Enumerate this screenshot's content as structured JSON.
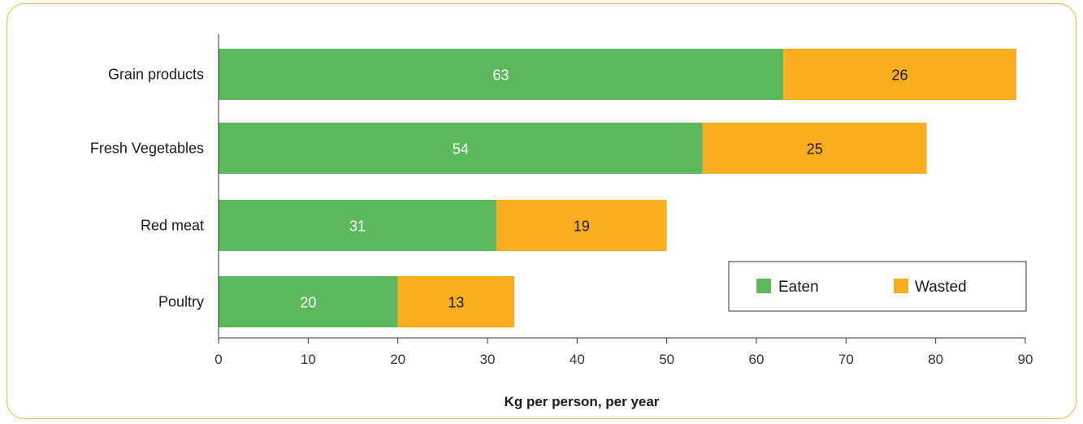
{
  "chart_data": {
    "type": "bar",
    "orientation": "horizontal",
    "stacked": true,
    "categories": [
      "Grain products",
      "Fresh Vegetables",
      "Red meat",
      "Poultry"
    ],
    "series": [
      {
        "name": "Eaten",
        "values": [
          63,
          54,
          31,
          20
        ],
        "color": "#5cb85c",
        "label_color": "#ffffff"
      },
      {
        "name": "Wasted",
        "values": [
          26,
          25,
          19,
          13
        ],
        "color": "#f8ae1e",
        "label_color": "#1a1a1a"
      }
    ],
    "xlabel": "Kg per person, per year",
    "xlim": [
      0,
      90
    ],
    "xticks": [
      "0",
      "10",
      "20",
      "30",
      "40",
      "50",
      "60",
      "70",
      "80",
      "90"
    ],
    "grid": false,
    "legend_position": "bottom-right"
  }
}
